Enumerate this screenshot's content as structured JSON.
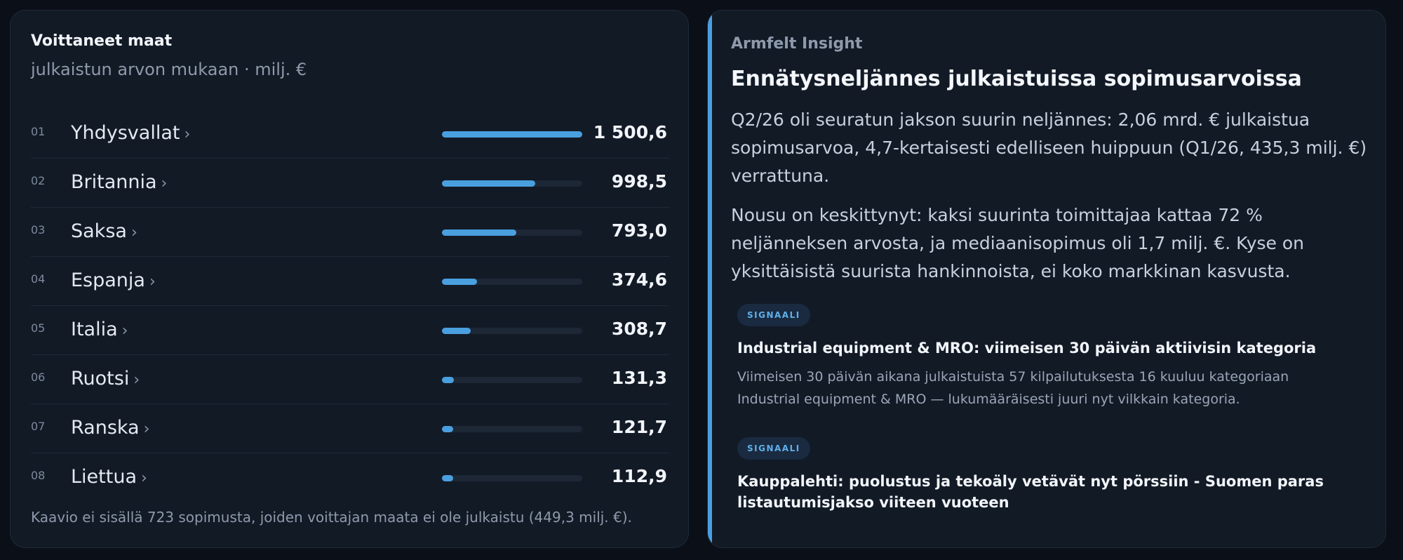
{
  "countries": {
    "title": "Voittaneet maat",
    "subtitle": "julkaistun arvon mukaan · milj. €",
    "chevron": "›",
    "max_value": 1500.6,
    "rows": [
      {
        "rank": "01",
        "name": "Yhdysvallat",
        "value": "1 500,6",
        "amount": 1500.6
      },
      {
        "rank": "02",
        "name": "Britannia",
        "value": "998,5",
        "amount": 998.5
      },
      {
        "rank": "03",
        "name": "Saksa",
        "value": "793,0",
        "amount": 793.0
      },
      {
        "rank": "04",
        "name": "Espanja",
        "value": "374,6",
        "amount": 374.6
      },
      {
        "rank": "05",
        "name": "Italia",
        "value": "308,7",
        "amount": 308.7
      },
      {
        "rank": "06",
        "name": "Ruotsi",
        "value": "131,3",
        "amount": 131.3
      },
      {
        "rank": "07",
        "name": "Ranska",
        "value": "121,7",
        "amount": 121.7
      },
      {
        "rank": "08",
        "name": "Liettua",
        "value": "112,9",
        "amount": 112.9
      }
    ],
    "footnote": "Kaavio ei sisällä 723 sopimusta, joiden voittajan maata ei ole julkaistu (449,3 milj. €)."
  },
  "insight": {
    "brand": "Armfelt Insight",
    "headline": "Ennätysneljännes julkaistuissa sopimusarvoissa",
    "paragraph1": "Q2/26 oli seuratun jakson suurin neljännes: 2,06 mrd. € julkaistua sopimusarvoa, 4,7-kertaisesti edelliseen huippuun (Q1/26, 435,3 milj. €) verrattuna.",
    "paragraph2": "Nousu on keskittynyt: kaksi suurinta toimittajaa kattaa 72 % neljänneksen arvosta, ja mediaanisopimus oli 1,7 milj. €. Kyse on yksittäisistä suurista hankinnoista, ei koko markkinan kasvusta.",
    "signals": [
      {
        "badge": "SIGNAALI",
        "title": "Industrial equipment & MRO: viimeisen 30 päivän aktiivisin kategoria",
        "body": "Viimeisen 30 päivän aikana julkaistuista 57 kilpailutuksesta 16 kuuluu kategoriaan Industrial equipment & MRO — lukumääräisesti juuri nyt vilkkain kategoria."
      },
      {
        "badge": "SIGNAALI",
        "title": "Kauppalehti: puolustus ja tekoäly vetävät nyt pörssiin - Suomen paras listautumisjakso viiteen vuoteen"
      }
    ]
  },
  "colors": {
    "accent": "#4a9fdf",
    "card": "#121a26",
    "background": "#0b0f17"
  }
}
